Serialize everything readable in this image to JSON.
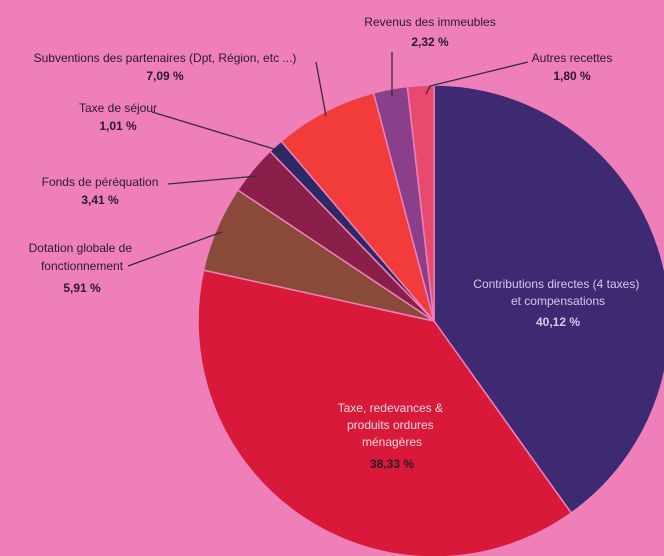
{
  "chart_data": {
    "type": "pie",
    "title": "",
    "slices": [
      {
        "label": "Contributions directes (4 taxes) et compensations",
        "value": 40.12,
        "value_label": "40,12 %",
        "color": "#3d2a72"
      },
      {
        "label": "Taxe, redevances & produits ordures ménagères",
        "value": 38.33,
        "value_label": "38,33 %",
        "color": "#d9193a"
      },
      {
        "label": "Dotation globale de fonctionnement",
        "value": 5.91,
        "value_label": "5,91 %",
        "color": "#8a4a3a"
      },
      {
        "label": "Fonds de péréquation",
        "value": 3.41,
        "value_label": "3,41 %",
        "color": "#8a1f4a"
      },
      {
        "label": "Taxe de séjour",
        "value": 1.01,
        "value_label": "1,01 %",
        "color": "#2c2a66"
      },
      {
        "label": "Subventions des partenaires (Dpt, Région, etc ...)",
        "value": 7.09,
        "value_label": "7,09 %",
        "color": "#f23b3b"
      },
      {
        "label": "Revenus des immeubles",
        "value": 2.32,
        "value_label": "2,32 %",
        "color": "#8a3f8a"
      },
      {
        "label": "Autres recettes",
        "value": 1.8,
        "value_label": "1,80 %",
        "color": "#e84a6e"
      }
    ]
  }
}
